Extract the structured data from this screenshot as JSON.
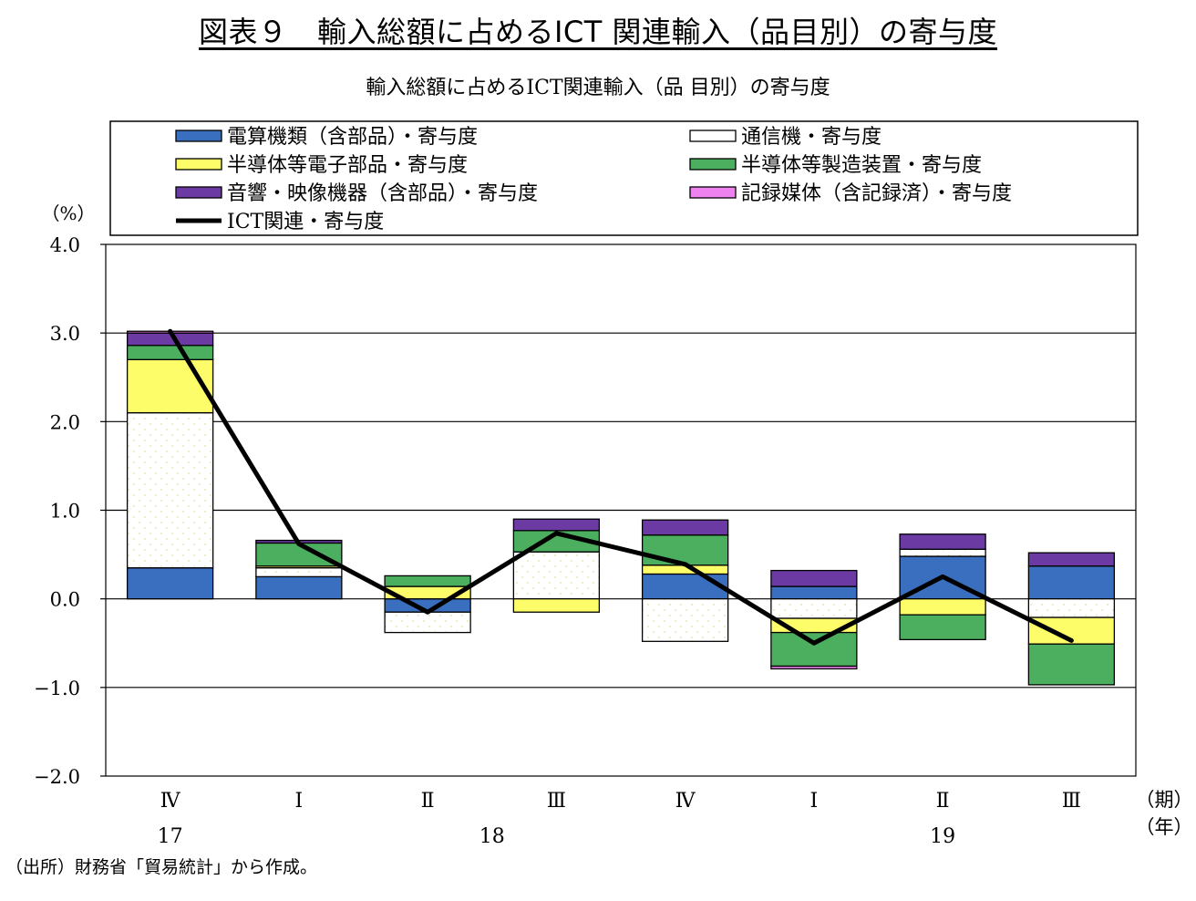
{
  "heading": "図表９　輸入総額に占めるICT 関連輸入（品目別）の寄与度",
  "source": "（出所）財務省「貿易統計」から作成。",
  "colors": {
    "computers": "#3a6fbf",
    "telecom": "#ffffff",
    "semiconductors": "#fdfd6a",
    "semi_equipment": "#4caf5f",
    "audio_video": "#6b3aa3",
    "recording_media": "#ee82ee",
    "line": "#000000",
    "grid": "#000000"
  },
  "chart_data": {
    "type": "bar",
    "stacked": true,
    "title": "輸入総額に占めるICT関連輸入（品 目別）の寄与度",
    "ylabel": "（%）",
    "xlabel_period": "（期）",
    "xlabel_year": "（年）",
    "ylim": [
      -2.0,
      4.0
    ],
    "yticks": [
      "4.0",
      "3.0",
      "2.0",
      "1.0",
      "0.0",
      "−1.0",
      "−2.0"
    ],
    "grid": true,
    "legend_position": "top",
    "categories": [
      "Ⅳ",
      "Ⅰ",
      "Ⅱ",
      "Ⅲ",
      "Ⅳ",
      "Ⅰ",
      "Ⅱ",
      "Ⅲ"
    ],
    "years": [
      {
        "label": "17",
        "index": 0
      },
      {
        "label": "18",
        "index": 2.5
      },
      {
        "label": "19",
        "index": 6
      }
    ],
    "series": [
      {
        "name": "電算機類（含部品）・寄与度",
        "key": "computers",
        "values": [
          0.35,
          0.25,
          -0.15,
          0.0,
          0.28,
          0.14,
          0.48,
          0.37
        ]
      },
      {
        "name": "通信機・寄与度",
        "key": "telecom",
        "values": [
          1.75,
          0.1,
          -0.23,
          0.53,
          -0.48,
          -0.22,
          0.08,
          -0.21
        ]
      },
      {
        "name": "半導体等電子部品・寄与度",
        "key": "semiconductors",
        "values": [
          0.6,
          0.02,
          0.14,
          -0.15,
          0.1,
          -0.16,
          -0.18,
          -0.3
        ]
      },
      {
        "name": "半導体等製造装置・寄与度",
        "key": "semi_equipment",
        "values": [
          0.16,
          0.26,
          0.12,
          0.24,
          0.34,
          -0.38,
          -0.28,
          -0.46
        ]
      },
      {
        "name": "音響・映像機器（含部品）・寄与度",
        "key": "audio_video",
        "values": [
          0.14,
          0.03,
          0.0,
          0.13,
          0.17,
          0.18,
          0.17,
          0.15
        ]
      },
      {
        "name": "記録媒体（含記録済）・寄与度",
        "key": "recording_media",
        "values": [
          0.02,
          0.0,
          0.0,
          0.0,
          0.0,
          -0.03,
          0.0,
          0.0
        ]
      }
    ],
    "line_series": {
      "name": "ICT関連・寄与度",
      "values": [
        3.02,
        0.62,
        -0.15,
        0.74,
        0.39,
        -0.5,
        0.25,
        -0.47
      ]
    }
  }
}
